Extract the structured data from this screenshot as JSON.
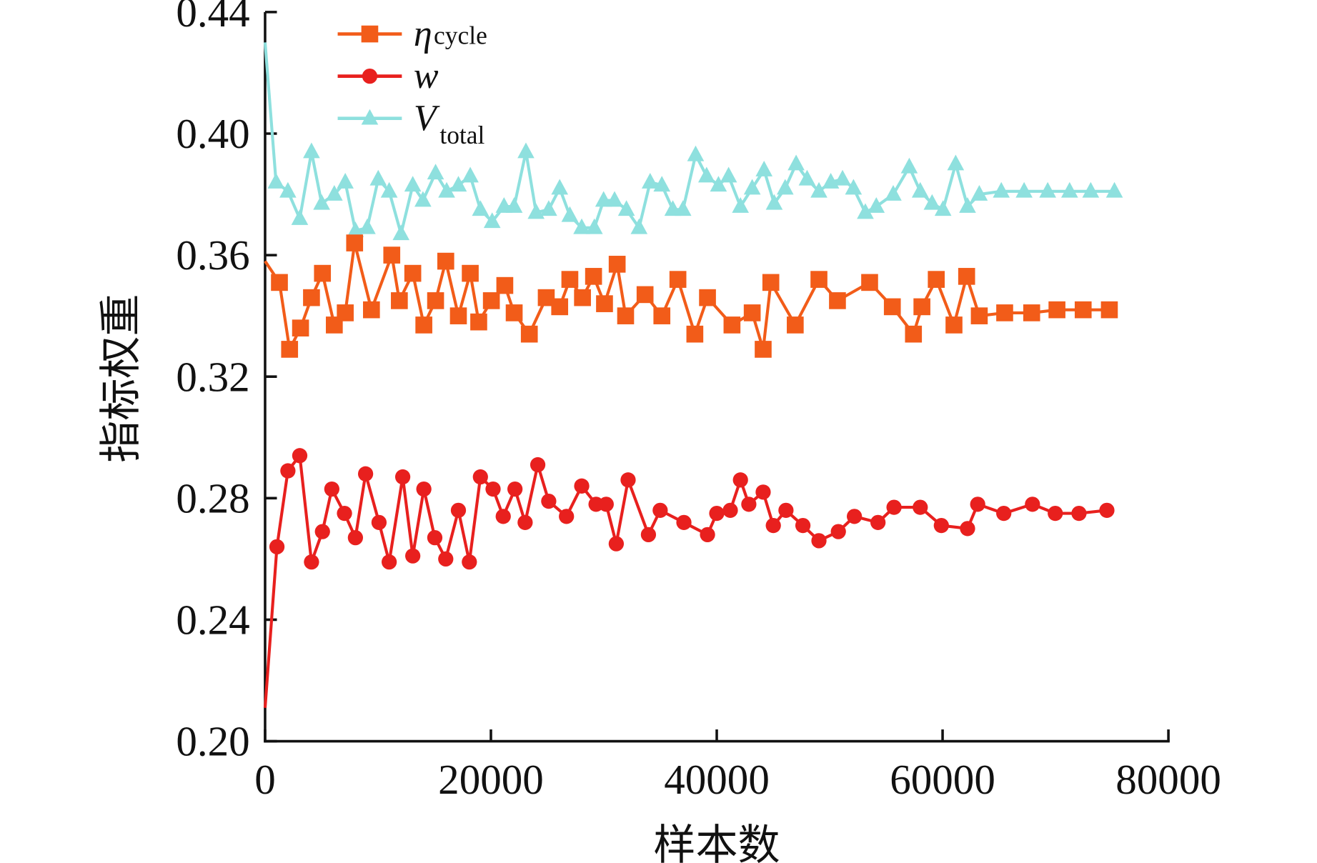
{
  "chart_data": {
    "type": "line",
    "title": "",
    "xlabel": "样本数",
    "ylabel": "指标权重",
    "xlim": [
      0,
      80000
    ],
    "ylim": [
      0.2,
      0.44
    ],
    "xticks": [
      0,
      20000,
      40000,
      60000,
      80000
    ],
    "xtick_labels": [
      "0",
      "20000",
      "40000",
      "60000",
      "80000"
    ],
    "yticks": [
      0.2,
      0.24,
      0.28,
      0.32,
      0.36,
      0.4,
      0.44
    ],
    "ytick_labels": [
      "0.20",
      "0.24",
      "0.28",
      "0.32",
      "0.36",
      "0.40",
      "0.44"
    ],
    "grid": false,
    "legend_position": "top-left",
    "series": [
      {
        "name": "η_cycle",
        "label_main": "η",
        "label_sub": "cycle",
        "color": "#f25c19",
        "marker": "square",
        "x": [
          0,
          1270,
          2170,
          3140,
          4110,
          5080,
          6130,
          7100,
          7930,
          9420,
          11220,
          11890,
          13080,
          14060,
          15100,
          16000,
          17120,
          18170,
          18920,
          20040,
          21230,
          22060,
          23400,
          24900,
          26090,
          26990,
          28110,
          29090,
          30060,
          31180,
          31930,
          33650,
          35140,
          36560,
          38060,
          39180,
          41350,
          43140,
          44110,
          44790,
          46950,
          49050,
          50690,
          53540,
          55550,
          57420,
          58170,
          59440,
          61010,
          62130,
          63250,
          65500,
          67890,
          70130,
          72450,
          74770
        ],
        "y": [
          0.358,
          0.351,
          0.329,
          0.336,
          0.346,
          0.354,
          0.337,
          0.341,
          0.364,
          0.342,
          0.36,
          0.345,
          0.354,
          0.337,
          0.345,
          0.358,
          0.34,
          0.354,
          0.338,
          0.345,
          0.35,
          0.341,
          0.334,
          0.346,
          0.343,
          0.352,
          0.346,
          0.353,
          0.344,
          0.357,
          0.34,
          0.347,
          0.34,
          0.352,
          0.334,
          0.346,
          0.337,
          0.341,
          0.329,
          0.351,
          0.337,
          0.352,
          0.345,
          0.351,
          0.343,
          0.334,
          0.343,
          0.352,
          0.337,
          0.353,
          0.34,
          0.341,
          0.341,
          0.342,
          0.342,
          0.342
        ]
      },
      {
        "name": "w",
        "label_main": "w",
        "label_sub": "",
        "color": "#e8201e",
        "marker": "circle",
        "x": [
          0,
          1050,
          2020,
          3070,
          4110,
          5080,
          5910,
          7030,
          8000,
          8900,
          10090,
          10990,
          12190,
          13080,
          14060,
          15030,
          16000,
          17120,
          18090,
          19070,
          20190,
          21090,
          22130,
          23030,
          24150,
          25120,
          26690,
          28040,
          29310,
          30210,
          31100,
          32150,
          33950,
          34990,
          37090,
          39180,
          40000,
          41200,
          42100,
          42840,
          44110,
          45010,
          46130,
          47630,
          49050,
          50770,
          52190,
          54280,
          55700,
          58020,
          59890,
          62210,
          63110,
          65420,
          67960,
          69980,
          72080,
          74550
        ],
        "y": [
          0.211,
          0.264,
          0.289,
          0.294,
          0.259,
          0.269,
          0.283,
          0.275,
          0.267,
          0.288,
          0.272,
          0.259,
          0.287,
          0.261,
          0.283,
          0.267,
          0.26,
          0.276,
          0.259,
          0.287,
          0.283,
          0.274,
          0.283,
          0.272,
          0.291,
          0.279,
          0.274,
          0.284,
          0.278,
          0.278,
          0.265,
          0.286,
          0.268,
          0.276,
          0.272,
          0.268,
          0.275,
          0.276,
          0.286,
          0.278,
          0.282,
          0.271,
          0.276,
          0.271,
          0.266,
          0.269,
          0.274,
          0.272,
          0.277,
          0.277,
          0.271,
          0.27,
          0.278,
          0.275,
          0.278,
          0.275,
          0.275,
          0.276
        ]
      },
      {
        "name": "V_total",
        "label_main": "V",
        "label_sub": "total",
        "color": "#8ee0de",
        "marker": "triangle",
        "x": [
          0,
          970,
          2020,
          3070,
          4110,
          5010,
          6130,
          7100,
          8000,
          9050,
          10020,
          10990,
          12040,
          13080,
          13980,
          15100,
          16080,
          17120,
          18170,
          19070,
          20110,
          21160,
          22060,
          23100,
          24000,
          25120,
          26090,
          26990,
          28040,
          29160,
          29980,
          30950,
          32000,
          33120,
          34100,
          35140,
          36110,
          37010,
          38130,
          39100,
          40150,
          41050,
          42100,
          43140,
          44190,
          45090,
          46060,
          47030,
          48000,
          49050,
          50100,
          51140,
          52110,
          53160,
          54130,
          55630,
          57050,
          58020,
          59070,
          60040,
          61160,
          62210,
          63250,
          65200,
          67220,
          69310,
          71250,
          73120,
          75220
        ],
        "y": [
          0.43,
          0.384,
          0.381,
          0.372,
          0.394,
          0.377,
          0.38,
          0.384,
          0.368,
          0.369,
          0.385,
          0.381,
          0.367,
          0.383,
          0.378,
          0.387,
          0.381,
          0.383,
          0.386,
          0.375,
          0.371,
          0.376,
          0.376,
          0.394,
          0.374,
          0.375,
          0.382,
          0.373,
          0.369,
          0.369,
          0.378,
          0.378,
          0.375,
          0.369,
          0.384,
          0.383,
          0.375,
          0.375,
          0.393,
          0.386,
          0.383,
          0.386,
          0.376,
          0.382,
          0.388,
          0.377,
          0.382,
          0.39,
          0.385,
          0.381,
          0.384,
          0.385,
          0.382,
          0.374,
          0.376,
          0.38,
          0.389,
          0.381,
          0.377,
          0.375,
          0.39,
          0.376,
          0.38,
          0.381,
          0.381,
          0.381,
          0.381,
          0.381,
          0.381
        ]
      }
    ]
  }
}
